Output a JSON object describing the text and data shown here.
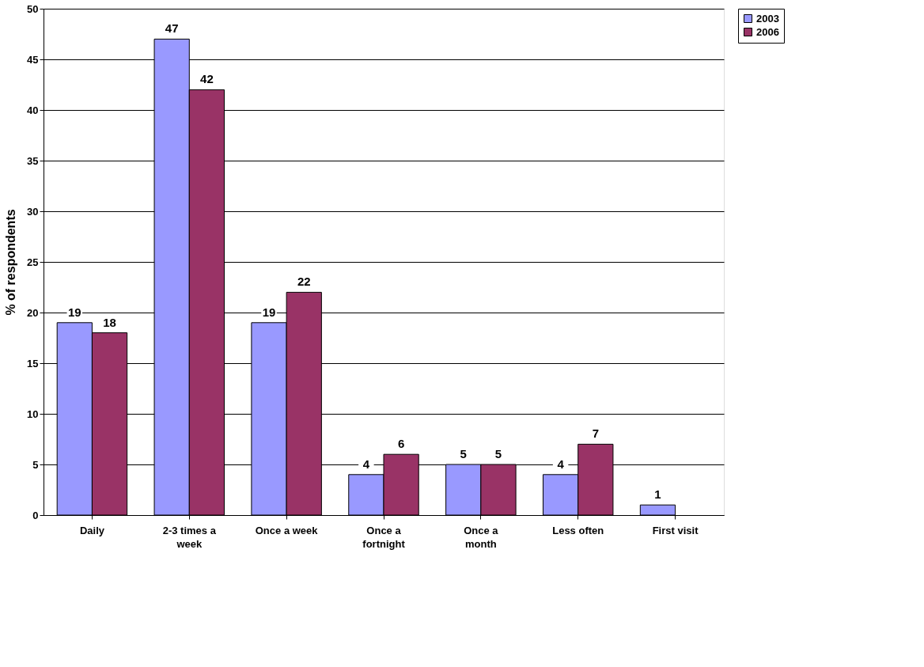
{
  "chart_data": {
    "type": "bar",
    "ylabel": "% of respondents",
    "categories": [
      "Daily",
      "2-3 times a week",
      "Once a week",
      "Once a fortnight",
      "Once a month",
      "Less often",
      "First visit"
    ],
    "series": [
      {
        "name": "2003",
        "color": "#9999ff",
        "values": [
          19,
          47,
          19,
          4,
          5,
          4,
          1
        ]
      },
      {
        "name": "2006",
        "color": "#993366",
        "values": [
          18,
          42,
          22,
          6,
          5,
          7,
          null
        ]
      }
    ],
    "ylim": [
      0,
      50
    ],
    "yticks": [
      0,
      5,
      10,
      15,
      20,
      25,
      30,
      35,
      40,
      45,
      50
    ],
    "grid": "y",
    "legend": "right",
    "data_labels": true
  }
}
